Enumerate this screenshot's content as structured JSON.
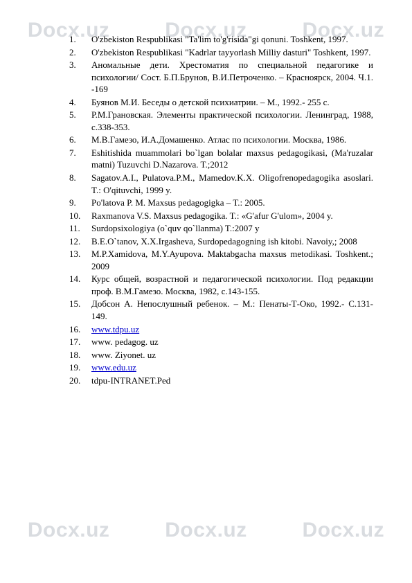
{
  "watermark": "Docx.uz",
  "refs": [
    {
      "n": "1.",
      "t": "O'zbekiston Respublikasi \"Ta'lim to'g'risida\"gi qonuni. Toshkent, 1997."
    },
    {
      "n": "2.",
      "t": "O'zbekiston Respublikasi \"Kadrlar tayyorlash Milliy dasturi\" Toshkent, 1997."
    },
    {
      "n": "3.",
      "t": "Аномальные дети. Хрестоматия по специальной педагогике и психологии/ Сост. Б.П.Брунов, В.И.Петроченко. – Красноярск, 2004. Ч.1. -169"
    },
    {
      "n": "4.",
      "t": "Буянов М.И. Беседы о детской психиатрии. – М., 1992.- 255 с."
    },
    {
      "n": "5.",
      "t": "Р.М.Грановская. Элементы практической психологии. Ленинград, 1988, с.338-353."
    },
    {
      "n": "6.",
      "t": "М.В.Гамезо, И.А.Домашенко. Атлас по психологии. Москва, 1986."
    },
    {
      "n": "7.",
      "t": "Eshitishida   muammolari       bo`lgan       bolalar       maxsus     pedagogikasi, (Ma'ruzalar matni) Tuzuvchi D.Nazarova. T.;2012",
      "indent": true
    },
    {
      "n": "8.",
      "t": "Sagatov.A.I.,       Pulatova.P.M.,      Mamedov.K.X.   Oligofrenopedagogika asoslari. T.: O'qituvchi, 1999 y.",
      "indent": true
    },
    {
      "n": "9.",
      "t": "Po'latova P. M. Maxsus pedagogigka – T.: 2005."
    },
    {
      "n": "10.",
      "t": "Raxmanova V.S. Maxsus pedagogika. T.: «G'afur G'ulom», 2004 y."
    },
    {
      "n": "11.",
      "t": "Surdopsixologiya (o`quv qo`llanma) T.:2007 y"
    },
    {
      "n": "12.",
      "t": "B.E.O`tanov, X.X.Irgasheva, Surdopedagogning ish kitobi. Navoiy,; 2008"
    },
    {
      "n": "13.",
      "t": "M.P.Xamidova, M.Y.Ayupova. Maktabgacha maxsus metodikasi. Toshkent.; 2009"
    },
    {
      "n": "14.",
      "t": "Курс общей, возрастной и педагогической психологии. Под редакции проф. В.М.Гамезо. Москва, 1982, с.143-155."
    },
    {
      "n": "15.",
      "t": "Добсон А. Непослушный ребенок. – М.: Пенаты-Т-Око, 1992.- С.131-149."
    },
    {
      "n": "16.",
      "t": "www.tdpu.uz",
      "link": true
    },
    {
      "n": "17.",
      "t": "www. pedagog. uz"
    },
    {
      "n": "18.",
      "t": "www. Ziyonet. uz"
    },
    {
      "n": "19.",
      "t": "www.edu.uz",
      "link": true
    },
    {
      "n": "20.",
      "t": "tdpu-INTRANET.Ped"
    }
  ]
}
